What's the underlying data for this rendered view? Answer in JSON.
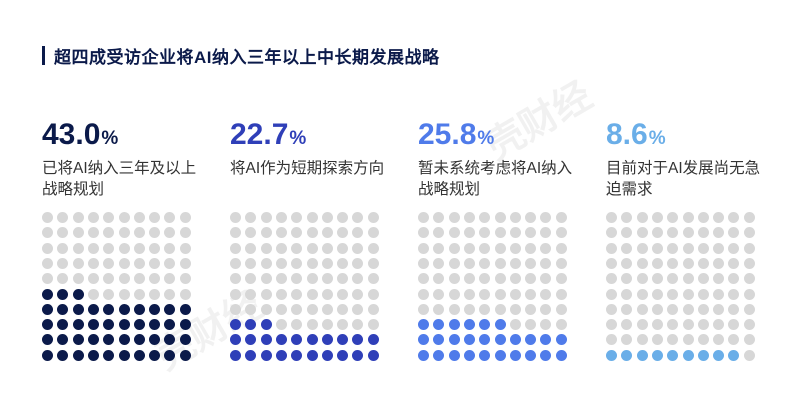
{
  "title": "超四成受访企业将AI纳入三年以上中长期发展战略",
  "watermark": "壳财经",
  "chart_data": {
    "type": "waffle",
    "unit": "%",
    "grid": {
      "rows": 10,
      "cols": 10
    },
    "empty_color": "#d7d7d7",
    "items": [
      {
        "value_text": "43.0",
        "value": 43.0,
        "label": "已将AI纳入三年及以上战略规划",
        "color": "#0b1a4a"
      },
      {
        "value_text": "22.7",
        "value": 22.7,
        "label": "将AI作为短期探索方向",
        "color": "#2f3fb8"
      },
      {
        "value_text": "25.8",
        "value": 25.8,
        "label": "暂未系统考虑将AI纳入战略规划",
        "color": "#4f7bea"
      },
      {
        "value_text": "8.6",
        "value": 8.6,
        "label": "目前对于AI发展尚无急迫需求",
        "color": "#6aaee8"
      }
    ]
  }
}
